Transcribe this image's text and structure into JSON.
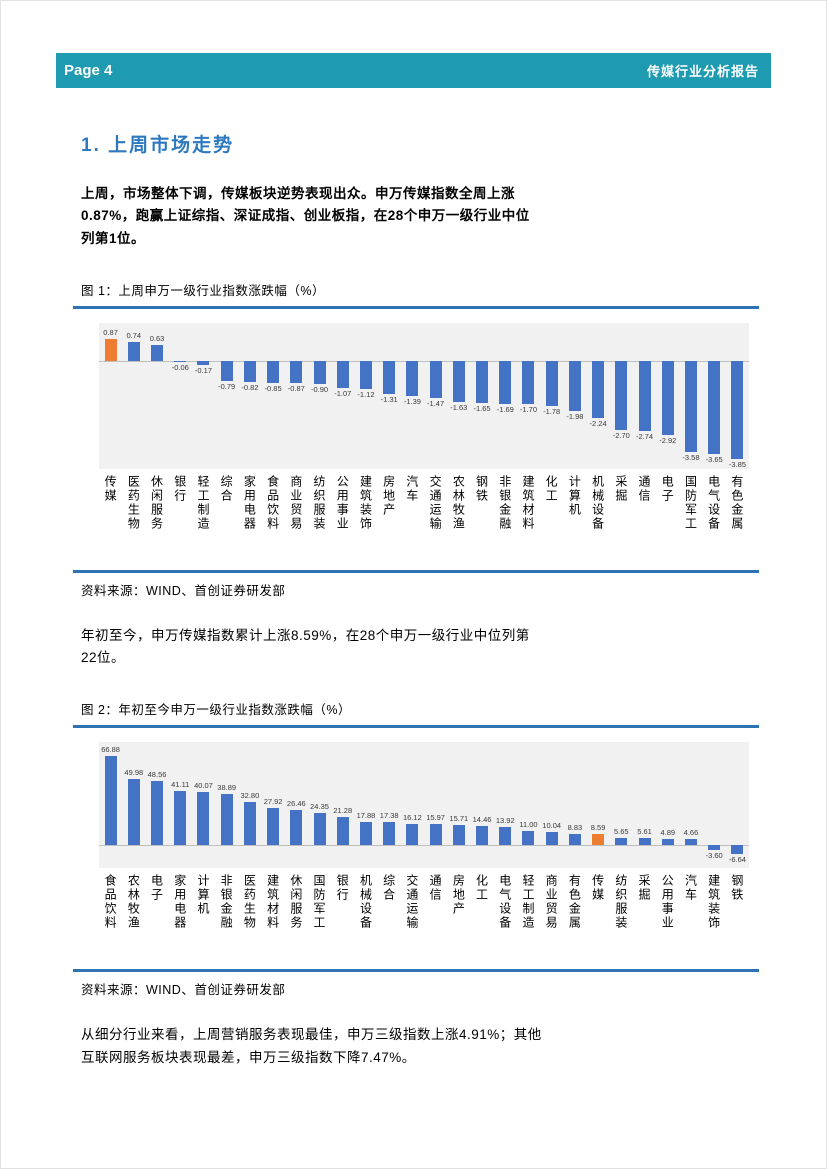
{
  "header": {
    "page_label": "Page 4",
    "report_title": "传媒行业分析报告"
  },
  "section": {
    "title": "1. 上周市场走势"
  },
  "paragraphs": {
    "p1": "上周，市场整体下调，传媒板块逆势表现出众。申万传媒指数全周上涨0.87%，跑赢上证综指、深证成指、创业板指，在28个申万一级行业中位列第1位。",
    "p2": "年初至今，申万传媒指数累计上涨8.59%，在28个申万一级行业中位列第22位。",
    "p3": "从细分行业来看，上周营销服务表现最佳，申万三级指数上涨4.91%；其他互联网服务板块表现最差，申万三级指数下降7.47%。"
  },
  "figures": [
    {
      "caption": "图 1：上周申万一级行业指数涨跌幅（%）",
      "source": "资料来源：WIND、首创证券研发部"
    },
    {
      "caption": "图 2：年初至今申万一级行业指数涨跌幅（%）",
      "source": "资料来源：WIND、首创证券研发部"
    }
  ],
  "colors": {
    "header_bg": "#1E9BB0",
    "accent_blue": "#2E74B5",
    "bar_blue": "#4472C4",
    "bar_orange": "#ED7D31",
    "plot_bg": "#F1F1F2"
  },
  "chart_data": [
    {
      "type": "bar",
      "title": "上周申万一级行业指数涨跌幅（%）",
      "categories": [
        "传媒",
        "医药生物",
        "休闲服务",
        "银行",
        "轻工制造",
        "综合",
        "家用电器",
        "食品饮料",
        "商业贸易",
        "纺织服装",
        "公用事业",
        "建筑装饰",
        "房地产",
        "汽车",
        "交通运输",
        "农林牧渔",
        "钢铁",
        "非银金融",
        "建筑材料",
        "化工",
        "计算机",
        "机械设备",
        "采掘",
        "通信",
        "电子",
        "国防军工",
        "电气设备",
        "有色金属"
      ],
      "values": [
        0.87,
        0.74,
        0.63,
        -0.06,
        -0.17,
        -0.79,
        -0.82,
        -0.85,
        -0.87,
        -0.9,
        -1.07,
        -1.12,
        -1.31,
        -1.39,
        -1.47,
        -1.63,
        -1.65,
        -1.69,
        -1.7,
        -1.78,
        -1.98,
        -2.24,
        -2.7,
        -2.74,
        -2.92,
        -3.58,
        -3.65,
        -3.85
      ],
      "highlight_index": 0,
      "highlight_category": "传媒",
      "bar_color": "#4472C4",
      "highlight_color": "#ED7D31",
      "ylim": [
        -4.2,
        1.2
      ],
      "grid": false,
      "legend": false,
      "xlabel": "",
      "ylabel": ""
    },
    {
      "type": "bar",
      "title": "年初至今申万一级行业指数涨跌幅（%）",
      "categories": [
        "食品饮料",
        "农林牧渔",
        "电子",
        "家用电器",
        "计算机",
        "非银金融",
        "医药生物",
        "建筑材料",
        "休闲服务",
        "国防军工",
        "银行",
        "机械设备",
        "综合",
        "交通运输",
        "通信",
        "房地产",
        "化工",
        "电气设备",
        "轻工制造",
        "商业贸易",
        "有色金属",
        "传媒",
        "纺织服装",
        "采掘",
        "公用事业",
        "汽车",
        "建筑装饰",
        "钢铁"
      ],
      "values": [
        66.88,
        49.98,
        48.56,
        41.11,
        40.07,
        38.89,
        32.8,
        27.92,
        26.46,
        24.35,
        21.28,
        17.88,
        17.38,
        16.12,
        15.97,
        15.71,
        14.46,
        13.92,
        11.0,
        10.04,
        8.83,
        8.59,
        5.65,
        5.61,
        4.89,
        4.66,
        -3.6,
        -6.64
      ],
      "highlight_index": 21,
      "highlight_category": "传媒",
      "bar_color": "#4472C4",
      "highlight_color": "#ED7D31",
      "ylim": [
        -10,
        75
      ],
      "grid": false,
      "legend": false,
      "xlabel": "",
      "ylabel": ""
    }
  ]
}
